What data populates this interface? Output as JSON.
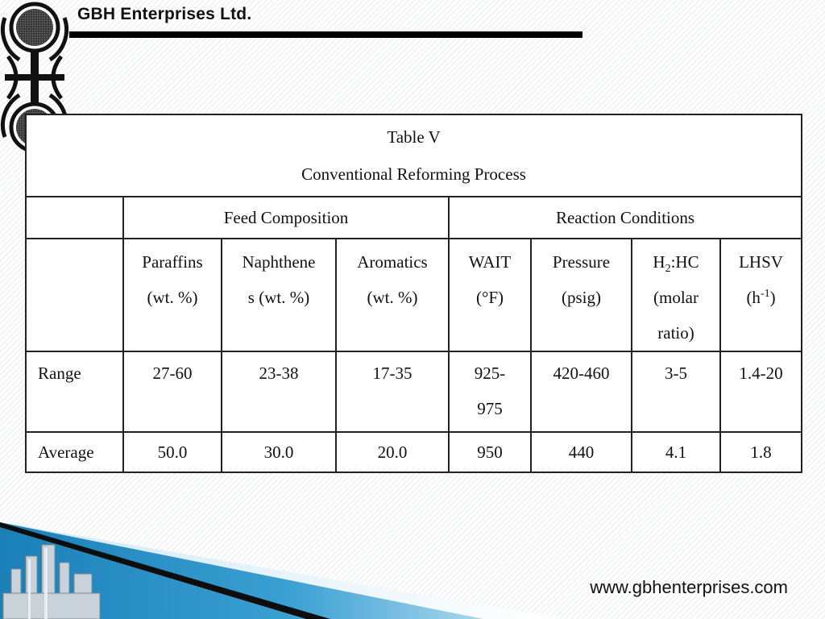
{
  "header": {
    "company_name": "GBH Enterprises Ltd."
  },
  "table": {
    "title": "Table V",
    "subtitle": "Conventional Reforming Process",
    "groups": {
      "feed": "Feed Composition",
      "reaction": "Reaction Conditions"
    },
    "columns": {
      "paraffins": {
        "name": "Paraffins",
        "unit": "(wt. %)"
      },
      "naphthenes": {
        "name": "Naphthene",
        "unit": "s (wt. %)"
      },
      "aromatics": {
        "name": "Aromatics",
        "unit": "(wt. %)"
      },
      "wait": {
        "name": "WAIT",
        "unit": "(°F)"
      },
      "pressure": {
        "name": "Pressure",
        "unit": "(psig)"
      },
      "h2hc": {
        "name_main": "H",
        "name_sub": "2",
        "name_rest": ":HC",
        "unit1": "(molar",
        "unit2": "ratio)"
      },
      "lhsv": {
        "name": "LHSV",
        "unit_main": "(h",
        "unit_sup": "-1",
        "unit_end": ")"
      }
    },
    "rows": {
      "range": {
        "label": "Range",
        "paraffins": "27-60",
        "naphthenes": "23-38",
        "aromatics": "17-35",
        "wait_line1": "925-",
        "wait_line2": "975",
        "pressure": "420-460",
        "h2hc": "3-5",
        "lhsv": "1.4-20"
      },
      "average": {
        "label": "Average",
        "paraffins": "50.0",
        "naphthenes": "30.0",
        "aromatics": "20.0",
        "wait": "950",
        "pressure": "440",
        "h2hc": "4.1",
        "lhsv": "1.8"
      }
    }
  },
  "footer": {
    "website": "www.gbhenterprises.com"
  },
  "colors": {
    "accent_blue": "#1b7fb8",
    "rule_black": "#000000"
  }
}
